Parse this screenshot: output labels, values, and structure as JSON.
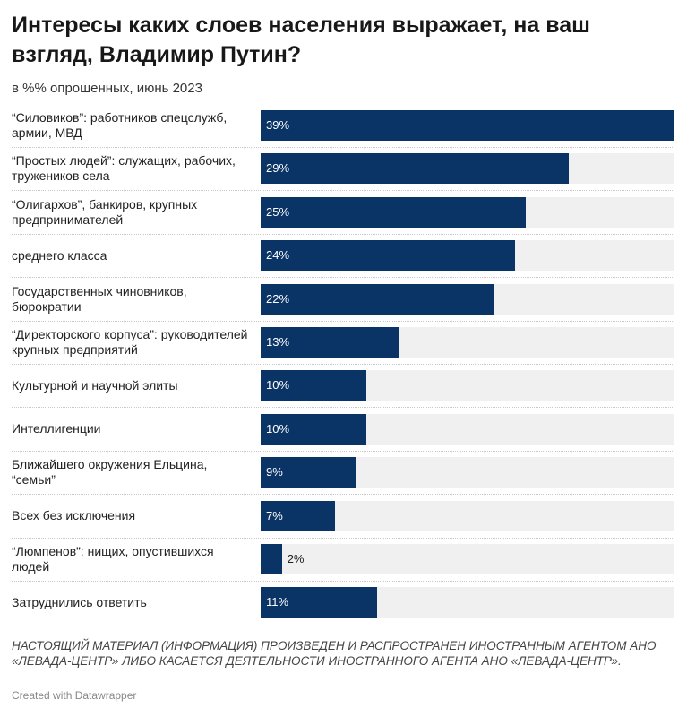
{
  "chart_data": {
    "type": "bar",
    "orientation": "horizontal",
    "title": "Интересы каких слоев населения выражает, на ваш взгляд, Владимир Путин?",
    "subtitle": "в %% опрошенных, июнь 2023",
    "categories": [
      "“Силовиков”: работников спецслужб, армии, МВД",
      "“Простых людей”: служащих, рабочих, тружеников села",
      "“Олигархов”, банкиров, крупных предпринимателей",
      "среднего класса",
      "Государственных чиновников, бюрократии",
      "“Директорского корпуса”: руководителей крупных предприятий",
      "Культурной и научной элиты",
      "Интеллигенции",
      "Ближайшего окружения Ельцина, “семьи”",
      "Всех без исключения",
      "“Люмпенов”: нищих, опустившихся людей",
      "Затруднились ответить"
    ],
    "values": [
      39,
      29,
      25,
      24,
      22,
      13,
      10,
      10,
      9,
      7,
      2,
      11
    ],
    "value_labels": [
      "39%",
      "29%",
      "25%",
      "24%",
      "22%",
      "13%",
      "10%",
      "10%",
      "9%",
      "7%",
      "2%",
      "11%"
    ],
    "xlim": [
      0,
      39
    ],
    "grid": false,
    "bar_color": "#0a3366",
    "track_color": "#f0f0f0"
  },
  "notes": "НАСТОЯЩИЙ МАТЕРИАЛ (ИНФОРМАЦИЯ) ПРОИЗВЕДЕН И РАСПРОСТРАНЕН ИНОСТРАННЫМ АГЕНТОМ АНО «ЛЕВАДА-ЦЕНТР» ЛИБО КАСАЕТСЯ ДЕЯТЕЛЬНОСТИ ИНОСТРАННОГО АГЕНТА АНО «ЛЕВАДА-ЦЕНТР».",
  "credit": "Created with Datawrapper"
}
